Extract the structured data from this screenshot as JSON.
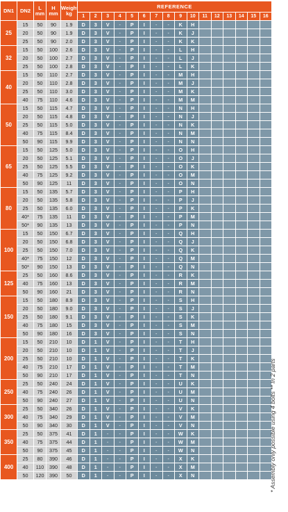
{
  "header": {
    "dn1": "DN1",
    "dn2": "DN2",
    "l": "L",
    "l_unit": "mm",
    "h": "H",
    "h_unit": "mm",
    "weight": "Weight",
    "weight_unit": "kg",
    "reference": "REFERENCE",
    "ref_positions": [
      "1",
      "2",
      "3",
      "4",
      "5",
      "6",
      "7",
      "8",
      "9",
      "10",
      "11",
      "12",
      "13",
      "14",
      "15",
      "16"
    ]
  },
  "groups": [
    {
      "dn1": "25",
      "rows": [
        [
          "15",
          "50",
          "90",
          "1.9",
          "D",
          "3",
          "V",
          "-",
          "P",
          "I",
          "-",
          "-",
          "K",
          "H"
        ],
        [
          "20",
          "50",
          "90",
          "1.9",
          "D",
          "3",
          "V",
          "-",
          "P",
          "I",
          "-",
          "-",
          "K",
          "J"
        ],
        [
          "25",
          "50",
          "90",
          "2.0",
          "D",
          "3",
          "V",
          "-",
          "P",
          "I",
          "-",
          "-",
          "K",
          "K"
        ]
      ]
    },
    {
      "dn1": "32",
      "rows": [
        [
          "15",
          "50",
          "100",
          "2.6",
          "D",
          "3",
          "V",
          "-",
          "P",
          "I",
          "-",
          "-",
          "L",
          "H"
        ],
        [
          "20",
          "50",
          "100",
          "2.7",
          "D",
          "3",
          "V",
          "-",
          "P",
          "I",
          "-",
          "-",
          "L",
          "J"
        ],
        [
          "25",
          "50",
          "100",
          "2.8",
          "D",
          "3",
          "V",
          "-",
          "P",
          "I",
          "-",
          "-",
          "L",
          "K"
        ]
      ]
    },
    {
      "dn1": "40",
      "rows": [
        [
          "15",
          "50",
          "110",
          "2.7",
          "D",
          "3",
          "V",
          "-",
          "P",
          "I",
          "-",
          "-",
          "M",
          "H"
        ],
        [
          "20",
          "50",
          "110",
          "2.8",
          "D",
          "3",
          "V",
          "-",
          "P",
          "I",
          "-",
          "-",
          "M",
          "J"
        ],
        [
          "25",
          "50",
          "110",
          "3.0",
          "D",
          "3",
          "V",
          "-",
          "P",
          "I",
          "-",
          "-",
          "M",
          "K"
        ],
        [
          "40",
          "75",
          "110",
          "4.6",
          "D",
          "3",
          "V",
          "-",
          "P",
          "I",
          "-",
          "-",
          "M",
          "M"
        ]
      ]
    },
    {
      "dn1": "50",
      "rows": [
        [
          "15",
          "50",
          "115",
          "4.7",
          "D",
          "3",
          "V",
          "-",
          "P",
          "I",
          "-",
          "-",
          "N",
          "H"
        ],
        [
          "20",
          "50",
          "115",
          "4.8",
          "D",
          "3",
          "V",
          "-",
          "P",
          "I",
          "-",
          "-",
          "N",
          "J"
        ],
        [
          "25",
          "50",
          "115",
          "5.0",
          "D",
          "3",
          "V",
          "-",
          "P",
          "I",
          "-",
          "-",
          "N",
          "K"
        ],
        [
          "40",
          "75",
          "115",
          "8.4",
          "D",
          "3",
          "V",
          "-",
          "P",
          "I",
          "-",
          "-",
          "N",
          "M"
        ],
        [
          "50",
          "90",
          "115",
          "9.9",
          "D",
          "3",
          "V",
          "-",
          "P",
          "I",
          "-",
          "-",
          "N",
          "N"
        ]
      ]
    },
    {
      "dn1": "65",
      "rows": [
        [
          "15",
          "50",
          "125",
          "5.0",
          "D",
          "3",
          "V",
          "-",
          "P",
          "I",
          "-",
          "-",
          "O",
          "H"
        ],
        [
          "20",
          "50",
          "125",
          "5.1",
          "D",
          "3",
          "V",
          "-",
          "P",
          "I",
          "-",
          "-",
          "O",
          "J"
        ],
        [
          "25",
          "50",
          "125",
          "5.5",
          "D",
          "3",
          "V",
          "-",
          "P",
          "I",
          "-",
          "-",
          "O",
          "K"
        ],
        [
          "40",
          "75",
          "125",
          "9.2",
          "D",
          "3",
          "V",
          "-",
          "P",
          "I",
          "-",
          "-",
          "O",
          "M"
        ],
        [
          "50",
          "90",
          "125",
          "11",
          "D",
          "3",
          "V",
          "-",
          "P",
          "I",
          "-",
          "-",
          "O",
          "N"
        ]
      ]
    },
    {
      "dn1": "80",
      "rows": [
        [
          "15",
          "50",
          "135",
          "5.7",
          "D",
          "3",
          "V",
          "-",
          "P",
          "I",
          "-",
          "-",
          "P",
          "H"
        ],
        [
          "20",
          "50",
          "135",
          "5.8",
          "D",
          "3",
          "V",
          "-",
          "P",
          "I",
          "-",
          "-",
          "P",
          "J"
        ],
        [
          "25",
          "50",
          "135",
          "6.0",
          "D",
          "3",
          "V",
          "-",
          "P",
          "I",
          "-",
          "-",
          "P",
          "K"
        ],
        [
          "40*",
          "75",
          "135",
          "11",
          "D",
          "3",
          "V",
          "-",
          "P",
          "I",
          "-",
          "-",
          "P",
          "M"
        ],
        [
          "50*",
          "90",
          "135",
          "13",
          "D",
          "3",
          "V",
          "-",
          "P",
          "I",
          "-",
          "-",
          "P",
          "N"
        ]
      ]
    },
    {
      "dn1": "100",
      "rows": [
        [
          "15",
          "50",
          "150",
          "6.7",
          "D",
          "3",
          "V",
          "-",
          "P",
          "I",
          "-",
          "-",
          "Q",
          "H"
        ],
        [
          "20",
          "50",
          "150",
          "6.8",
          "D",
          "3",
          "V",
          "-",
          "P",
          "I",
          "-",
          "-",
          "Q",
          "J"
        ],
        [
          "25",
          "50",
          "150",
          "7.0",
          "D",
          "3",
          "V",
          "-",
          "P",
          "I",
          "-",
          "-",
          "Q",
          "K"
        ],
        [
          "40*",
          "75",
          "150",
          "12",
          "D",
          "3",
          "V",
          "-",
          "P",
          "I",
          "-",
          "-",
          "Q",
          "M"
        ],
        [
          "50*",
          "90",
          "150",
          "13",
          "D",
          "3",
          "V",
          "-",
          "P",
          "I",
          "-",
          "-",
          "Q",
          "N"
        ]
      ]
    },
    {
      "dn1": "125",
      "rows": [
        [
          "25",
          "50",
          "160",
          "8.6",
          "D",
          "3",
          "V",
          "-",
          "P",
          "I",
          "-",
          "-",
          "R",
          "K"
        ],
        [
          "40",
          "75",
          "160",
          "13",
          "D",
          "3",
          "V",
          "-",
          "P",
          "I",
          "-",
          "-",
          "R",
          "M"
        ],
        [
          "50",
          "90",
          "160",
          "21",
          "D",
          "3",
          "V",
          "-",
          "P",
          "I",
          "-",
          "-",
          "R",
          "N"
        ]
      ]
    },
    {
      "dn1": "150",
      "rows": [
        [
          "15",
          "50",
          "180",
          "8.9",
          "D",
          "3",
          "V",
          "-",
          "P",
          "I",
          "-",
          "-",
          "S",
          "H"
        ],
        [
          "20",
          "50",
          "180",
          "9.0",
          "D",
          "3",
          "V",
          "-",
          "P",
          "I",
          "-",
          "-",
          "S",
          "J"
        ],
        [
          "25",
          "50",
          "180",
          "9.1",
          "D",
          "3",
          "V",
          "-",
          "P",
          "I",
          "-",
          "-",
          "S",
          "K"
        ],
        [
          "40",
          "75",
          "180",
          "15",
          "D",
          "3",
          "V",
          "-",
          "P",
          "I",
          "-",
          "-",
          "S",
          "M"
        ],
        [
          "50",
          "90",
          "180",
          "16",
          "D",
          "3",
          "V",
          "-",
          "P",
          "I",
          "-",
          "-",
          "S",
          "N"
        ]
      ]
    },
    {
      "dn1": "200",
      "rows": [
        [
          "15",
          "50",
          "210",
          "10",
          "D",
          "1",
          "V",
          "-",
          "P",
          "I",
          "-",
          "-",
          "T",
          "H"
        ],
        [
          "20",
          "50",
          "210",
          "10",
          "D",
          "1",
          "V",
          "-",
          "P",
          "I",
          "-",
          "-",
          "T",
          "J"
        ],
        [
          "25",
          "50",
          "210",
          "10",
          "D",
          "1",
          "V",
          "-",
          "P",
          "I",
          "-",
          "-",
          "T",
          "K"
        ],
        [
          "40",
          "75",
          "210",
          "17",
          "D",
          "1",
          "V",
          "-",
          "P",
          "I",
          "-",
          "-",
          "T",
          "M"
        ],
        [
          "50",
          "90",
          "210",
          "17",
          "D",
          "1",
          "V",
          "-",
          "P",
          "I",
          "-",
          "-",
          "T",
          "N"
        ]
      ]
    },
    {
      "dn1": "250",
      "rows": [
        [
          "25",
          "50",
          "240",
          "24",
          "D",
          "1",
          "V",
          "-",
          "P",
          "I",
          "-",
          "-",
          "U",
          "K"
        ],
        [
          "40",
          "75",
          "240",
          "26",
          "D",
          "1",
          "V",
          "-",
          "P",
          "I",
          "-",
          "-",
          "U",
          "M"
        ],
        [
          "50",
          "90",
          "240",
          "27",
          "D",
          "1",
          "V",
          "-",
          "P",
          "I",
          "-",
          "-",
          "U",
          "N"
        ]
      ]
    },
    {
      "dn1": "300",
      "rows": [
        [
          "25",
          "50",
          "340",
          "26",
          "D",
          "1",
          "V",
          "-",
          "P",
          "I",
          "-",
          "-",
          "V",
          "K"
        ],
        [
          "40",
          "75",
          "340",
          "29",
          "D",
          "1",
          "V",
          "-",
          "P",
          "I",
          "-",
          "-",
          "V",
          "M"
        ],
        [
          "50",
          "90",
          "340",
          "30",
          "D",
          "1",
          "V",
          "-",
          "P",
          "I",
          "-",
          "-",
          "V",
          "N"
        ]
      ]
    },
    {
      "dn1": "350",
      "rows": [
        [
          "25",
          "50",
          "375",
          "41",
          "D",
          "1",
          "-",
          "-",
          "P",
          "I",
          "-",
          "-",
          "W",
          "K"
        ],
        [
          "40",
          "75",
          "375",
          "44",
          "D",
          "1",
          "-",
          "-",
          "P",
          "I",
          "-",
          "-",
          "W",
          "M"
        ],
        [
          "50",
          "90",
          "375",
          "45",
          "D",
          "1",
          "-",
          "-",
          "P",
          "I",
          "-",
          "-",
          "W",
          "N"
        ]
      ]
    },
    {
      "dn1": "400",
      "rows": [
        [
          "25",
          "80",
          "390",
          "46",
          "D",
          "1",
          "-",
          "-",
          "P",
          "I",
          "-",
          "-",
          "X",
          "K"
        ],
        [
          "40",
          "110",
          "390",
          "48",
          "D",
          "1",
          "-",
          "-",
          "P",
          "I",
          "-",
          "-",
          "X",
          "M"
        ],
        [
          "50",
          "120",
          "390",
          "50",
          "D",
          "1",
          "-",
          "-",
          "P",
          "I",
          "-",
          "-",
          "X",
          "N"
        ]
      ]
    }
  ],
  "footnote": "* Assembly only possible using 4 bolts  ** In 2 parts"
}
